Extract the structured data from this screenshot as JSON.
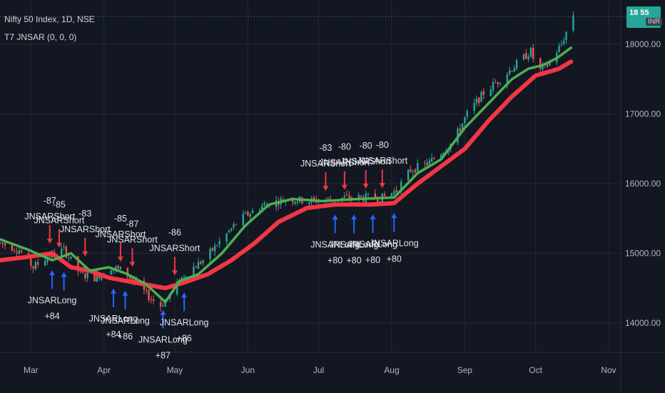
{
  "symbol_title": "Nifty 50 Index, 1D, NSE",
  "indicator_title": "T7 JNSAR (0, 0, 0)",
  "price_badge": {
    "value": "18 55",
    "currency": "INR"
  },
  "colors": {
    "background": "#131722",
    "candle_up": "#26a69a",
    "candle_down": "#ef5350",
    "jnsar_fast": "#4caf50",
    "jnsar_slow": "#f23645",
    "short_arrow": "#f23645",
    "long_arrow": "#2962ff",
    "badge": "#26a69a"
  },
  "chart_data": {
    "type": "line",
    "title": "Nifty 50 Index, 1D, NSE",
    "ylim": [
      13600,
      18500
    ],
    "y_ticks": [
      14000,
      15000,
      16000,
      17000,
      18000
    ],
    "y_tick_labels": [
      "14000.00",
      "15000.00",
      "16000.00",
      "17000.00",
      "18000.00"
    ],
    "x_ticks": [
      {
        "label": "Mar",
        "day": 1
      },
      {
        "label": "Apr",
        "day": 32
      },
      {
        "label": "May",
        "day": 62
      },
      {
        "label": "Jun",
        "day": 93
      },
      {
        "label": "Jul",
        "day": 123
      },
      {
        "label": "Aug",
        "day": 154
      },
      {
        "label": "Sep",
        "day": 185
      },
      {
        "label": "Oct",
        "day": 215
      },
      {
        "label": "Nov",
        "day": 246
      }
    ],
    "price_keyframes": [
      [
        -12,
        15150
      ],
      [
        -4,
        15050
      ],
      [
        2,
        14800
      ],
      [
        8,
        14950
      ],
      [
        15,
        15050
      ],
      [
        22,
        14700
      ],
      [
        28,
        14650
      ],
      [
        35,
        14800
      ],
      [
        40,
        14750
      ],
      [
        46,
        14550
      ],
      [
        52,
        14350
      ],
      [
        56,
        14250
      ],
      [
        60,
        14400
      ],
      [
        66,
        14700
      ],
      [
        74,
        14900
      ],
      [
        82,
        15200
      ],
      [
        90,
        15500
      ],
      [
        100,
        15700
      ],
      [
        110,
        15780
      ],
      [
        120,
        15750
      ],
      [
        135,
        15800
      ],
      [
        150,
        15800
      ],
      [
        156,
        15900
      ],
      [
        162,
        16200
      ],
      [
        170,
        16300
      ],
      [
        180,
        16600
      ],
      [
        186,
        17000
      ],
      [
        193,
        17300
      ],
      [
        200,
        17500
      ],
      [
        208,
        17750
      ],
      [
        213,
        17900
      ],
      [
        216,
        17600
      ],
      [
        220,
        17700
      ],
      [
        226,
        18000
      ],
      [
        230,
        18350
      ],
      [
        232,
        18500
      ]
    ],
    "series": [
      {
        "name": "JNSAR fast",
        "keyframes": [
          [
            -12,
            15200
          ],
          [
            0,
            15050
          ],
          [
            10,
            14900
          ],
          [
            18,
            15000
          ],
          [
            26,
            14750
          ],
          [
            34,
            14800
          ],
          [
            42,
            14700
          ],
          [
            50,
            14550
          ],
          [
            58,
            14300
          ],
          [
            64,
            14600
          ],
          [
            72,
            14700
          ],
          [
            82,
            15000
          ],
          [
            92,
            15400
          ],
          [
            102,
            15700
          ],
          [
            112,
            15780
          ],
          [
            125,
            15750
          ],
          [
            140,
            15780
          ],
          [
            155,
            15800
          ],
          [
            165,
            16150
          ],
          [
            175,
            16350
          ],
          [
            185,
            16800
          ],
          [
            195,
            17150
          ],
          [
            205,
            17500
          ],
          [
            212,
            17650
          ],
          [
            218,
            17700
          ],
          [
            224,
            17800
          ],
          [
            230,
            17950
          ]
        ]
      },
      {
        "name": "JNSAR slow",
        "keyframes": [
          [
            -12,
            14900
          ],
          [
            0,
            14950
          ],
          [
            10,
            15000
          ],
          [
            18,
            14800
          ],
          [
            26,
            14750
          ],
          [
            34,
            14650
          ],
          [
            42,
            14600
          ],
          [
            50,
            14550
          ],
          [
            58,
            14500
          ],
          [
            66,
            14580
          ],
          [
            76,
            14700
          ],
          [
            86,
            14900
          ],
          [
            96,
            15150
          ],
          [
            106,
            15450
          ],
          [
            118,
            15650
          ],
          [
            130,
            15700
          ],
          [
            145,
            15700
          ],
          [
            155,
            15720
          ],
          [
            165,
            16000
          ],
          [
            175,
            16250
          ],
          [
            185,
            16500
          ],
          [
            195,
            16900
          ],
          [
            205,
            17250
          ],
          [
            215,
            17550
          ],
          [
            225,
            17650
          ],
          [
            230,
            17750
          ]
        ]
      }
    ],
    "signals": [
      {
        "type": "short",
        "day": 9,
        "value": "-87",
        "label": "JNSARShort"
      },
      {
        "type": "short",
        "day": 13,
        "value": "-85",
        "label": "JNSARShort"
      },
      {
        "type": "short",
        "day": 24,
        "value": "-83",
        "label": "JNSARShort"
      },
      {
        "type": "short",
        "day": 39,
        "value": "-85",
        "label": "JNSARShort"
      },
      {
        "type": "short",
        "day": 44,
        "value": "-87",
        "label": "JNSARShort"
      },
      {
        "type": "short",
        "day": 62,
        "value": "-86",
        "label": "JNSARShort"
      },
      {
        "type": "short",
        "day": 126,
        "value": "-83",
        "label": "JNSARShort"
      },
      {
        "type": "short",
        "day": 134,
        "value": "-80",
        "label": "JNSARShort"
      },
      {
        "type": "short",
        "day": 143,
        "value": "-80",
        "label": "JNSARShort"
      },
      {
        "type": "short",
        "day": 150,
        "value": "-80",
        "label": "JNSARShort"
      },
      {
        "type": "long",
        "day": 10,
        "value": "+84",
        "label": "JNSARLong"
      },
      {
        "type": "long",
        "day": 15,
        "value": "",
        "label": ""
      },
      {
        "type": "long",
        "day": 36,
        "value": "+84",
        "label": "JNSARLong"
      },
      {
        "type": "long",
        "day": 41,
        "value": "+86",
        "label": "JNSARLong"
      },
      {
        "type": "long",
        "day": 57,
        "value": "+87",
        "label": "JNSARLong"
      },
      {
        "type": "long",
        "day": 66,
        "value": "+86",
        "label": "JNSARLong"
      },
      {
        "type": "long",
        "day": 130,
        "value": "+80",
        "label": "JNSARLong"
      },
      {
        "type": "long",
        "day": 138,
        "value": "+80",
        "label": "JNSARLong"
      },
      {
        "type": "long",
        "day": 146,
        "value": "+80",
        "label": "JNSARLong"
      },
      {
        "type": "long",
        "day": 155,
        "value": "+80",
        "label": "JNSARLong"
      }
    ]
  }
}
